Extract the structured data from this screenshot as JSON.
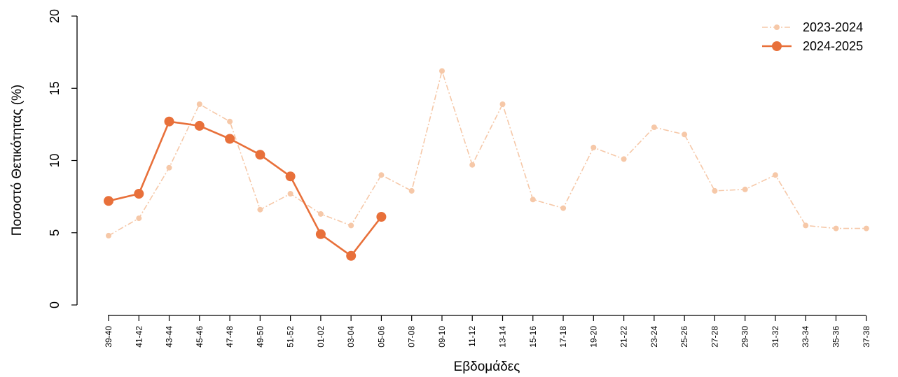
{
  "chart_data": {
    "type": "line",
    "title": "",
    "xlabel": "Εβδομάδες",
    "ylabel": "Ποσοστό Θετικότητας (%)",
    "ylim": [
      0,
      20
    ],
    "yticks": [
      "0",
      "5",
      "10",
      "15",
      "20"
    ],
    "grid": false,
    "legend_position": "top-right",
    "categories": [
      "39-40",
      "41-42",
      "43-44",
      "45-46",
      "47-48",
      "49-50",
      "51-52",
      "01-02",
      "03-04",
      "05-06",
      "07-08",
      "09-10",
      "11-12",
      "13-14",
      "15-16",
      "17-18",
      "19-20",
      "21-22",
      "23-24",
      "25-26",
      "27-28",
      "29-30",
      "31-32",
      "33-34",
      "35-36",
      "37-38"
    ],
    "series": [
      {
        "name": "2023-2024",
        "color": "#f6c8a8",
        "style": "dash-dot",
        "values": [
          4.8,
          6.0,
          9.5,
          13.9,
          12.7,
          6.6,
          7.7,
          6.3,
          5.5,
          9.0,
          7.9,
          16.2,
          9.7,
          13.9,
          7.3,
          6.7,
          10.9,
          10.1,
          12.3,
          11.8,
          7.9,
          8.0,
          9.0,
          5.5,
          5.3,
          5.3
        ]
      },
      {
        "name": "2024-2025",
        "color": "#e8703a",
        "style": "solid",
        "values": [
          7.2,
          7.7,
          12.7,
          12.4,
          11.5,
          10.4,
          8.9,
          4.9,
          3.4,
          6.1,
          null,
          null,
          null,
          null,
          null,
          null,
          null,
          null,
          null,
          null,
          null,
          null,
          null,
          null,
          null,
          null
        ]
      }
    ]
  }
}
